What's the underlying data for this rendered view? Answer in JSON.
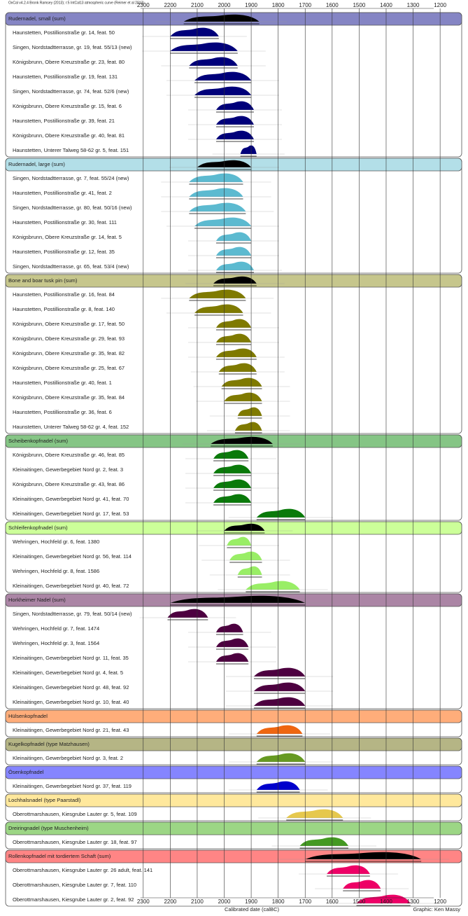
{
  "chart_data": {
    "type": "multiplot",
    "title": "OxCal v4.2.4 Bronk Ramsey (2013); r:5 IntCal13 atmospheric curve (Reimer et al 2013)",
    "x_label": "Calibrated date (calBC)",
    "credit": "Graphic: Ken Massy",
    "xlim": [
      2810,
      1120
    ],
    "xticks": [
      2300,
      2200,
      2100,
      2000,
      1900,
      1800,
      1700,
      1600,
      1500,
      1400,
      1300,
      1200
    ],
    "grid": true,
    "sum_color": "#000000",
    "groups": [
      {
        "name": "Rudernadel, small (sum)",
        "color": "#8585c4",
        "sample_color": "#00007a",
        "range": [
          2150,
          1870
        ],
        "samples": [
          {
            "name": "Haunstetten, Postillionstraße gr. 14, feat. 50",
            "range": [
              2200,
              2020
            ]
          },
          {
            "name": "Singen, Nordstadtterrasse, gr. 19, feat. 55/13 (new)",
            "range": [
              2200,
              1950
            ]
          },
          {
            "name": "Königsbrunn, Obere Kreuzstraße gr. 23, feat. 80",
            "range": [
              2130,
              1950
            ]
          },
          {
            "name": "Haunstetten, Postillionstraße gr. 19, feat. 131",
            "range": [
              2110,
              1900
            ]
          },
          {
            "name": "Singen, Nordstadtterrasse, gr. 74, feat. 52/6 (new)",
            "range": [
              2110,
              1900
            ]
          },
          {
            "name": "Königsbrunn, Obere Kreuzstraße gr. 15, feat. 6",
            "range": [
              2030,
              1890
            ]
          },
          {
            "name": "Haunstetten, Postillionstraße gr. 39, feat. 21",
            "range": [
              2030,
              1890
            ]
          },
          {
            "name": "Königsbrunn, Obere Kreuzstraße gr. 40, feat. 81",
            "range": [
              2030,
              1890
            ]
          },
          {
            "name": "Haunstetten, Unterer Talweg 58-62 gr. 5, feat. 151",
            "range": [
              1940,
              1880
            ]
          }
        ]
      },
      {
        "name": "Rudernadel, large (sum)",
        "color": "#b3dfe8",
        "sample_color": "#5cbad0",
        "range": [
          2100,
          1900
        ],
        "samples": [
          {
            "name": "Singen, Nordstadtterrasse, gr. 7, feat. 55/24 (new)",
            "range": [
              2130,
              1930
            ]
          },
          {
            "name": "Haunstetten, Postillionstraße gr. 41, feat. 2",
            "range": [
              2130,
              1930
            ]
          },
          {
            "name": "Singen, Nordstadtterrasse, gr. 80, feat. 50/16 (new)",
            "range": [
              2130,
              1920
            ]
          },
          {
            "name": "Haunstetten, Postillionstraße gr. 30, feat. 111",
            "range": [
              2110,
              1900
            ]
          },
          {
            "name": "Königsbrunn, Obere Kreuzstraße gr. 14, feat. 5",
            "range": [
              2030,
              1900
            ]
          },
          {
            "name": "Haunstetten, Postillionstraße gr. 12, feat. 35",
            "range": [
              2030,
              1900
            ]
          },
          {
            "name": "Singen, Nordstadtterrasse, gr. 65, feat. 53/4 (new)",
            "range": [
              2030,
              1890
            ]
          }
        ]
      },
      {
        "name": "Bone and boar tusk pin (sum)",
        "color": "#c6c68c",
        "sample_color": "#7f7a00",
        "range": [
          2040,
          1880
        ],
        "samples": [
          {
            "name": "Haunstetten, Postillionstraße gr. 16, feat. 84",
            "range": [
              2130,
              1920
            ]
          },
          {
            "name": "Haunstetten, Postillionstraße gr. 8, feat. 140",
            "range": [
              2110,
              1930
            ]
          },
          {
            "name": "Königsbrunn, Obere Kreuzstraße gr. 17, feat. 50",
            "range": [
              2030,
              1900
            ]
          },
          {
            "name": "Königsbrunn, Obere Kreuzstraße gr. 29, feat. 93",
            "range": [
              2030,
              1900
            ]
          },
          {
            "name": "Königsbrunn, Obere Kreuzstraße gr. 35, feat. 82",
            "range": [
              2030,
              1880
            ]
          },
          {
            "name": "Königsbrunn, Obere Kreuzstraße gr. 25, feat. 67",
            "range": [
              2020,
              1880
            ]
          },
          {
            "name": "Haunstetten, Postillionstraße gr. 40, feat. 1",
            "range": [
              2010,
              1860
            ]
          },
          {
            "name": "Königsbrunn, Obere Kreuzstraße gr. 35, feat. 84",
            "range": [
              2000,
              1860
            ]
          },
          {
            "name": "Haunstetten, Postillionstraße gr. 36, feat. 6",
            "range": [
              1950,
              1860
            ]
          },
          {
            "name": "Haunstetten, Unterer Talweg 58-62 gr. 4, feat. 152",
            "range": [
              1960,
              1860
            ]
          }
        ]
      },
      {
        "name": "Scheibenkopfnadel (sum)",
        "color": "#85c585",
        "sample_color": "#0a7a0a",
        "range": [
          2050,
          1820
        ],
        "samples": [
          {
            "name": "Königsbrunn, Obere Kreuzstraße gr. 46, feat. 85",
            "range": [
              2040,
              1910
            ]
          },
          {
            "name": "Kleinaitingen, Gewerbegebiet Nord gr. 2, feat. 3",
            "range": [
              2040,
              1900
            ]
          },
          {
            "name": "Königsbrunn, Obere Kreuzstraße gr. 43, feat. 86",
            "range": [
              2040,
              1900
            ]
          },
          {
            "name": "Kleinaitingen, Gewerbegebiet Nord gr. 41, feat. 70",
            "range": [
              2040,
              1900
            ]
          },
          {
            "name": "Kleinaitingen, Gewerbegebiet Nord gr. 17, feat. 53",
            "range": [
              1880,
              1700
            ]
          }
        ]
      },
      {
        "name": "Schleifenkopfnadel (sum)",
        "color": "#ccff99",
        "sample_color": "#99ee66",
        "range": [
          2000,
          1850
        ],
        "samples": [
          {
            "name": "Wehringen, Hochfeld gr. 6, feat. 1380",
            "range": [
              1990,
              1900
            ]
          },
          {
            "name": "Kleinaitingen, Gewerbegebiet Nord gr. 56, feat. 114",
            "range": [
              1980,
              1860
            ]
          },
          {
            "name": "Wehringen, Hochfeld gr. 8, feat. 1586",
            "range": [
              1950,
              1860
            ]
          },
          {
            "name": "Kleinaitingen, Gewerbegebiet Nord gr. 40, feat. 72",
            "range": [
              1920,
              1720
            ]
          }
        ]
      },
      {
        "name": "Horkheimer Nadel (sum)",
        "color": "#ab85a5",
        "sample_color": "#4d0040",
        "range": [
          2200,
          1700
        ],
        "samples": [
          {
            "name": "Singen, Nordstadtterrasse, gr. 79, feat. 50/14 (new)",
            "range": [
              2210,
              2060
            ]
          },
          {
            "name": "Wehringen, Hochfeld gr. 7, feat. 1474",
            "range": [
              2030,
              1930
            ]
          },
          {
            "name": "Wehringen, Hochfeld gr. 3, feat. 1564",
            "range": [
              2030,
              1910
            ]
          },
          {
            "name": "Kleinaitingen, Gewerbegebiet Nord gr. 11, feat. 35",
            "range": [
              2030,
              1910
            ]
          },
          {
            "name": "Kleinaitingen, Gewerbegebiet Nord gr. 4, feat. 5",
            "range": [
              1890,
              1700
            ]
          },
          {
            "name": "Kleinaitingen, Gewerbegebiet Nord gr. 48, feat. 92",
            "range": [
              1890,
              1700
            ]
          },
          {
            "name": "Kleinaitingen, Gewerbegebiet Nord gr. 10, feat. 40",
            "range": [
              1890,
              1700
            ]
          }
        ]
      },
      {
        "name": "Hülsenkopfnadel",
        "color": "#ffad7a",
        "sample_color": "#ee6611",
        "samples": [
          {
            "name": "Kleinaitingen, Gewerbegebiet Nord gr. 21, feat. 43",
            "range": [
              1880,
              1710
            ]
          }
        ]
      },
      {
        "name": "Kugelkopfnadel (type Matzhausen)",
        "color": "#b5b585",
        "sample_color": "#669922",
        "samples": [
          {
            "name": "Kleinaitingen, Gewerbegebiet Nord gr. 3, feat. 2",
            "range": [
              1880,
              1700
            ]
          }
        ]
      },
      {
        "name": "Ösenkopfnadel",
        "color": "#8585ff",
        "sample_color": "#0000cc",
        "samples": [
          {
            "name": "Kleinaitingen, Gewerbegebiet Nord gr. 37, feat. 119",
            "range": [
              1880,
              1720
            ]
          }
        ]
      },
      {
        "name": "Lochhalsnadel (type Paarstadl)",
        "color": "#ffe89c",
        "sample_color": "#e6c84d",
        "samples": [
          {
            "name": "Oberottmarshausen, Kiesgrube Lauter gr. 5, feat. 109",
            "range": [
              1770,
              1560
            ]
          }
        ]
      },
      {
        "name": "Dreiringnadel (type Muschenheim)",
        "color": "#9cd685",
        "sample_color": "#449922",
        "samples": [
          {
            "name": "Oberottmarshausen, Kiesgrube Lauter gr. 18, feat. 97",
            "range": [
              1720,
              1540
            ]
          }
        ]
      },
      {
        "name": "Rollenkopfnadel mit tordiertem Schaft (sum)",
        "color": "#ff8585",
        "sample_color": "#ee0066",
        "range": [
          1700,
          1270
        ],
        "samples": [
          {
            "name": "Oberottmarshausen, Kiesgrube Lauter gr. 26 adult, feat. 141",
            "range": [
              1620,
              1460
            ]
          },
          {
            "name": "Oberottmarshausen, Kiesgrube Lauter gr. 7, feat. 110",
            "range": [
              1560,
              1420
            ]
          },
          {
            "name": "Oberottmarshausen, Kiesgrube Lauter gr. 2, feat. 92",
            "range": [
              1510,
              1310
            ]
          }
        ]
      }
    ]
  }
}
